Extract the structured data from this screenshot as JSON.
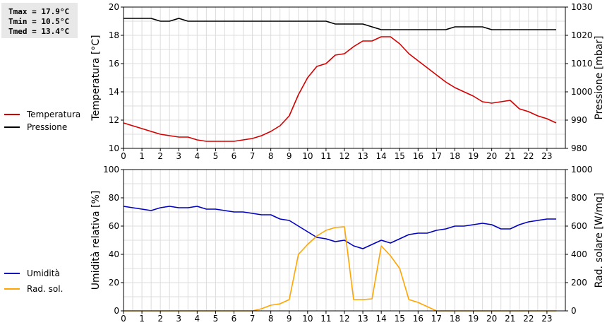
{
  "stats": {
    "tmax": "Tmax = 17.9°C",
    "tmin": "Tmin = 10.5°C",
    "tmed": "Tmed = 13.4°C"
  },
  "chart_data": [
    {
      "type": "line",
      "ylabel": "Temperatura [°C]",
      "y2label": "Pressione [mbar]",
      "xlim": [
        0,
        24
      ],
      "ylim": [
        10,
        20
      ],
      "y2lim": [
        980,
        1030
      ],
      "xticks": [
        "0",
        "1",
        "2",
        "3",
        "4",
        "5",
        "6",
        "7",
        "8",
        "9",
        "10",
        "11",
        "12",
        "13",
        "14",
        "15",
        "16",
        "17",
        "18",
        "19",
        "20",
        "21",
        "22",
        "23"
      ],
      "yticks": [
        "10",
        "12",
        "14",
        "16",
        "18",
        "20"
      ],
      "y2ticks": [
        "980",
        "990",
        "1000",
        "1010",
        "1020",
        "1030"
      ],
      "grid": true,
      "legend_position": "left",
      "series": [
        {
          "name": "Temperatura",
          "axis": "left",
          "color": "#d40000",
          "x": [
            0,
            0.5,
            1,
            1.5,
            2,
            2.5,
            3,
            3.5,
            4,
            4.5,
            5,
            5.5,
            6,
            6.5,
            7,
            7.5,
            8,
            8.5,
            9,
            9.5,
            10,
            10.5,
            11,
            11.5,
            12,
            12.5,
            13,
            13.5,
            14,
            14.5,
            15,
            15.5,
            16,
            16.5,
            17,
            17.5,
            18,
            18.5,
            19,
            19.5,
            20,
            20.5,
            21,
            21.5,
            22,
            22.5,
            23,
            23.5
          ],
          "values": [
            11.8,
            11.6,
            11.4,
            11.2,
            11.0,
            10.9,
            10.8,
            10.8,
            10.6,
            10.5,
            10.5,
            10.5,
            10.5,
            10.6,
            10.7,
            10.9,
            11.2,
            11.6,
            12.3,
            13.8,
            15.0,
            15.8,
            16.0,
            16.6,
            16.7,
            17.2,
            17.6,
            17.6,
            17.9,
            17.9,
            17.4,
            16.7,
            16.2,
            15.7,
            15.2,
            14.7,
            14.3,
            14.0,
            13.7,
            13.3,
            13.2,
            13.3,
            13.4,
            12.8,
            12.6,
            12.3,
            12.1,
            11.8
          ]
        },
        {
          "name": "Pressione",
          "axis": "right",
          "color": "#000000",
          "x": [
            0,
            0.5,
            1,
            1.5,
            2,
            2.5,
            3,
            3.5,
            4,
            4.5,
            5,
            5.5,
            6,
            6.5,
            7,
            7.5,
            8,
            8.5,
            9,
            9.5,
            10,
            10.5,
            11,
            11.5,
            12,
            12.5,
            13,
            13.5,
            14,
            14.5,
            15,
            15.5,
            16,
            16.5,
            17,
            17.5,
            18,
            18.5,
            19,
            19.5,
            20,
            20.5,
            21,
            21.5,
            22,
            22.5,
            23,
            23.5
          ],
          "values": [
            1026,
            1026,
            1026,
            1026,
            1025,
            1025,
            1026,
            1025,
            1025,
            1025,
            1025,
            1025,
            1025,
            1025,
            1025,
            1025,
            1025,
            1025,
            1025,
            1025,
            1025,
            1025,
            1025,
            1024,
            1024,
            1024,
            1024,
            1023,
            1022,
            1022,
            1022,
            1022,
            1022,
            1022,
            1022,
            1022,
            1023,
            1023,
            1023,
            1023,
            1022,
            1022,
            1022,
            1022,
            1022,
            1022,
            1022,
            1022
          ]
        }
      ]
    },
    {
      "type": "line",
      "ylabel": "Umidità relativa [%]",
      "y2label": "Rad. solare [W/mq]",
      "xlim": [
        0,
        24
      ],
      "ylim": [
        0,
        100
      ],
      "y2lim": [
        0,
        1000
      ],
      "xticks": [
        "0",
        "1",
        "2",
        "3",
        "4",
        "5",
        "6",
        "7",
        "8",
        "9",
        "10",
        "11",
        "12",
        "13",
        "14",
        "15",
        "16",
        "17",
        "18",
        "19",
        "20",
        "21",
        "22",
        "23"
      ],
      "yticks": [
        "0",
        "20",
        "40",
        "60",
        "80",
        "100"
      ],
      "y2ticks": [
        "0",
        "200",
        "400",
        "600",
        "800",
        "1000"
      ],
      "grid": true,
      "legend_position": "left",
      "series": [
        {
          "name": "Umidità",
          "axis": "left",
          "color": "#0000c0",
          "x": [
            0,
            0.5,
            1,
            1.5,
            2,
            2.5,
            3,
            3.5,
            4,
            4.5,
            5,
            5.5,
            6,
            6.5,
            7,
            7.5,
            8,
            8.5,
            9,
            9.5,
            10,
            10.5,
            11,
            11.5,
            12,
            12.5,
            13,
            13.5,
            14,
            14.5,
            15,
            15.5,
            16,
            16.5,
            17,
            17.5,
            18,
            18.5,
            19,
            19.5,
            20,
            20.5,
            21,
            21.5,
            22,
            22.5,
            23,
            23.5
          ],
          "values": [
            74,
            73,
            72,
            71,
            73,
            74,
            73,
            73,
            74,
            72,
            72,
            71,
            70,
            70,
            69,
            68,
            68,
            65,
            64,
            60,
            56,
            52,
            51,
            49,
            50,
            46,
            44,
            47,
            50,
            48,
            51,
            54,
            55,
            55,
            57,
            58,
            60,
            60,
            61,
            62,
            61,
            58,
            58,
            61,
            63,
            64,
            65,
            65
          ]
        },
        {
          "name": "Rad. sol.",
          "axis": "right",
          "color": "#ffa500",
          "x": [
            0,
            0.5,
            1,
            1.5,
            2,
            2.5,
            3,
            3.5,
            4,
            4.5,
            5,
            5.5,
            6,
            6.5,
            7,
            7.5,
            8,
            8.5,
            9,
            9.5,
            10,
            10.5,
            11,
            11.5,
            12,
            12.5,
            13,
            13.5,
            14,
            14.5,
            15,
            15.5,
            16,
            16.5,
            17,
            17.5,
            18,
            18.5,
            19,
            19.5,
            20,
            20.5,
            21,
            21.5,
            22,
            22.5,
            23,
            23.5
          ],
          "values": [
            0,
            0,
            0,
            0,
            0,
            0,
            0,
            0,
            0,
            0,
            0,
            0,
            0,
            0,
            0,
            15,
            40,
            50,
            80,
            400,
            470,
            530,
            570,
            590,
            595,
            80,
            80,
            85,
            460,
            390,
            300,
            80,
            60,
            30,
            0,
            0,
            0,
            0,
            0,
            0,
            0,
            0,
            0,
            0,
            0,
            0,
            0,
            0
          ]
        }
      ]
    }
  ]
}
